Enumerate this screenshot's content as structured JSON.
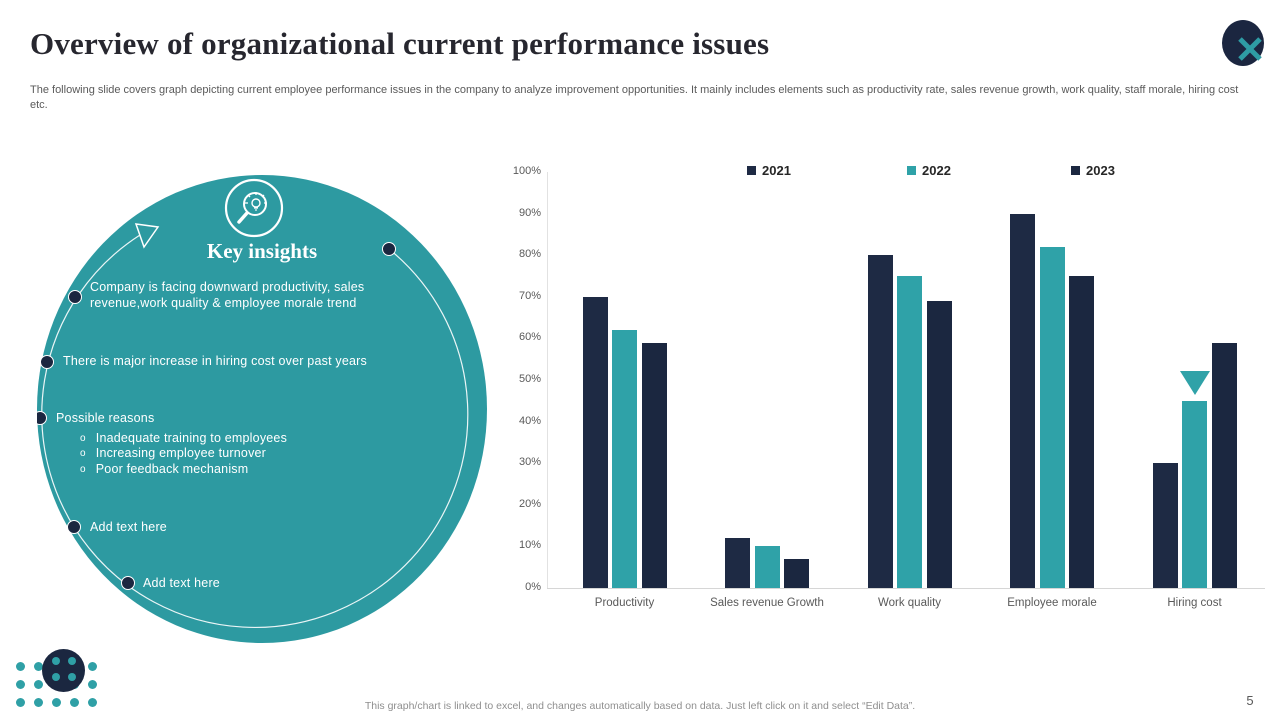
{
  "slide": {
    "title": "Overview of organizational current performance issues",
    "subtitle": "The following slide covers graph depicting current employee performance issues in the company to analyze  improvement opportunities. It mainly includes elements such as productivity rate,  sales revenue growth, work quality,  staff morale, hiring cost etc.",
    "footer_note": "This graph/chart is linked to excel, and changes automatically based on data. Just left click on it and select “Edit Data”.",
    "page_number": "5"
  },
  "insights": {
    "heading": "Key insights",
    "icon": "magnifier-lightbulb-icon",
    "bullets": [
      {
        "text": "Company is facing downward  productivity,  sales revenue,work  quality & employee  morale  trend"
      },
      {
        "text": "There  is major increase in hiring  cost over  past years"
      },
      {
        "text": "Possible reasons",
        "sub": [
          "Inadequate  training to employees",
          "Increasing  employee  turnover",
          "Poor feedback  mechanism"
        ]
      },
      {
        "text": "Add text here"
      },
      {
        "text": "Add text here"
      }
    ]
  },
  "chart_data": {
    "type": "bar",
    "title": "",
    "categories": [
      "Productivity",
      "Sales revenue Growth",
      "Work quality",
      "Employee morale",
      "Hiring cost"
    ],
    "series": [
      {
        "name": "2021",
        "color": "#1e2a44",
        "values": [
          70,
          12,
          80,
          90,
          30
        ]
      },
      {
        "name": "2022",
        "color": "#2fa2a8",
        "values": [
          62,
          10,
          75,
          82,
          45
        ]
      },
      {
        "name": "2023",
        "color": "#1b2740",
        "values": [
          59,
          7,
          69,
          75,
          59
        ]
      }
    ],
    "axis": {
      "min": 0,
      "max": 100,
      "step": 10,
      "format": "percent"
    },
    "grid": false,
    "legend_position": "top",
    "marker": {
      "category": "Hiring cost",
      "series": "2022",
      "shape": "triangle-down",
      "color": "#2fa2a8"
    }
  },
  "colors": {
    "teal": "#2d9aa1",
    "navy": "#1b2740",
    "axis_text": "#595959"
  }
}
